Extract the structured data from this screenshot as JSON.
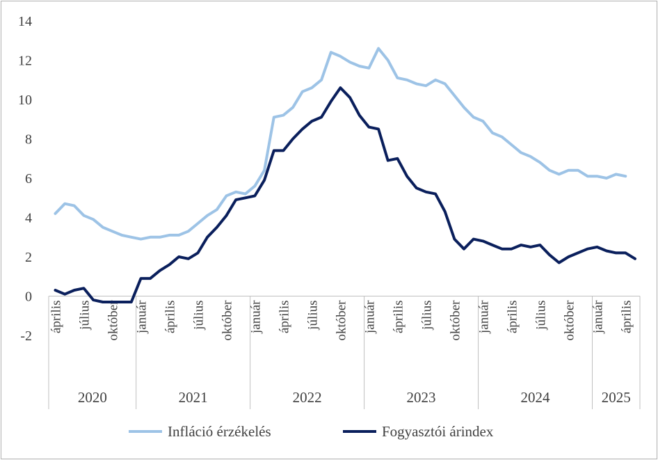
{
  "chart_data": {
    "type": "line",
    "title": "",
    "xlabel": "",
    "ylabel": "",
    "ylim": [
      -2,
      14
    ],
    "yticks": [
      "14",
      "12",
      "10",
      "8",
      "6",
      "4",
      "2",
      "0",
      "-2"
    ],
    "grid": "none",
    "legend_position": "bottom",
    "month_labels": [
      {
        "index": 0,
        "label": "április"
      },
      {
        "index": 3,
        "label": "július"
      },
      {
        "index": 6,
        "label": "október"
      },
      {
        "index": 9,
        "label": "január"
      },
      {
        "index": 12,
        "label": "április"
      },
      {
        "index": 15,
        "label": "július"
      },
      {
        "index": 18,
        "label": "október"
      },
      {
        "index": 21,
        "label": "január"
      },
      {
        "index": 24,
        "label": "április"
      },
      {
        "index": 27,
        "label": "július"
      },
      {
        "index": 30,
        "label": "október"
      },
      {
        "index": 33,
        "label": "január"
      },
      {
        "index": 36,
        "label": "április"
      },
      {
        "index": 39,
        "label": "július"
      },
      {
        "index": 42,
        "label": "október"
      },
      {
        "index": 45,
        "label": "január"
      },
      {
        "index": 48,
        "label": "április"
      },
      {
        "index": 51,
        "label": "július"
      },
      {
        "index": 54,
        "label": "október"
      },
      {
        "index": 57,
        "label": "január"
      },
      {
        "index": 60,
        "label": "április"
      }
    ],
    "years": [
      {
        "label": "2020",
        "start": 0,
        "end": 8
      },
      {
        "label": "2021",
        "start": 9,
        "end": 20
      },
      {
        "label": "2022",
        "start": 21,
        "end": 32
      },
      {
        "label": "2023",
        "start": 33,
        "end": 44
      },
      {
        "label": "2024",
        "start": 45,
        "end": 56
      },
      {
        "label": "2025",
        "start": 57,
        "end": 61
      }
    ],
    "series": [
      {
        "name": "Infláció érzékelés",
        "color": "#9dc3e6",
        "values": [
          4.2,
          4.7,
          4.6,
          4.1,
          3.9,
          3.5,
          3.3,
          3.1,
          3.0,
          2.9,
          3.0,
          3.0,
          3.1,
          3.1,
          3.3,
          3.7,
          4.1,
          4.4,
          5.1,
          5.3,
          5.2,
          5.6,
          6.4,
          9.1,
          9.2,
          9.6,
          10.4,
          10.6,
          11.0,
          12.4,
          12.2,
          11.9,
          11.7,
          11.6,
          12.6,
          12.0,
          11.1,
          11.0,
          10.8,
          10.7,
          11.0,
          10.8,
          10.2,
          9.6,
          9.1,
          8.9,
          8.3,
          8.1,
          7.7,
          7.3,
          7.1,
          6.8,
          6.4,
          6.2,
          6.4,
          6.4,
          6.1,
          6.1,
          6.0,
          6.2,
          6.1
        ]
      },
      {
        "name": "Fogyasztói árindex",
        "color": "#0a1f5c",
        "values": [
          0.3,
          0.1,
          0.3,
          0.4,
          -0.2,
          -0.3,
          -0.3,
          -0.3,
          -0.3,
          0.9,
          0.9,
          1.3,
          1.6,
          2.0,
          1.9,
          2.2,
          3.0,
          3.5,
          4.1,
          4.9,
          5.0,
          5.1,
          5.9,
          7.4,
          7.4,
          8.0,
          8.5,
          8.9,
          9.1,
          9.9,
          10.6,
          10.1,
          9.2,
          8.6,
          8.5,
          6.9,
          7.0,
          6.1,
          5.5,
          5.3,
          5.2,
          4.3,
          2.9,
          2.4,
          2.9,
          2.8,
          2.6,
          2.4,
          2.4,
          2.6,
          2.5,
          2.6,
          2.1,
          1.7,
          2.0,
          2.2,
          2.4,
          2.5,
          2.3,
          2.2,
          2.2,
          1.9
        ]
      }
    ]
  }
}
